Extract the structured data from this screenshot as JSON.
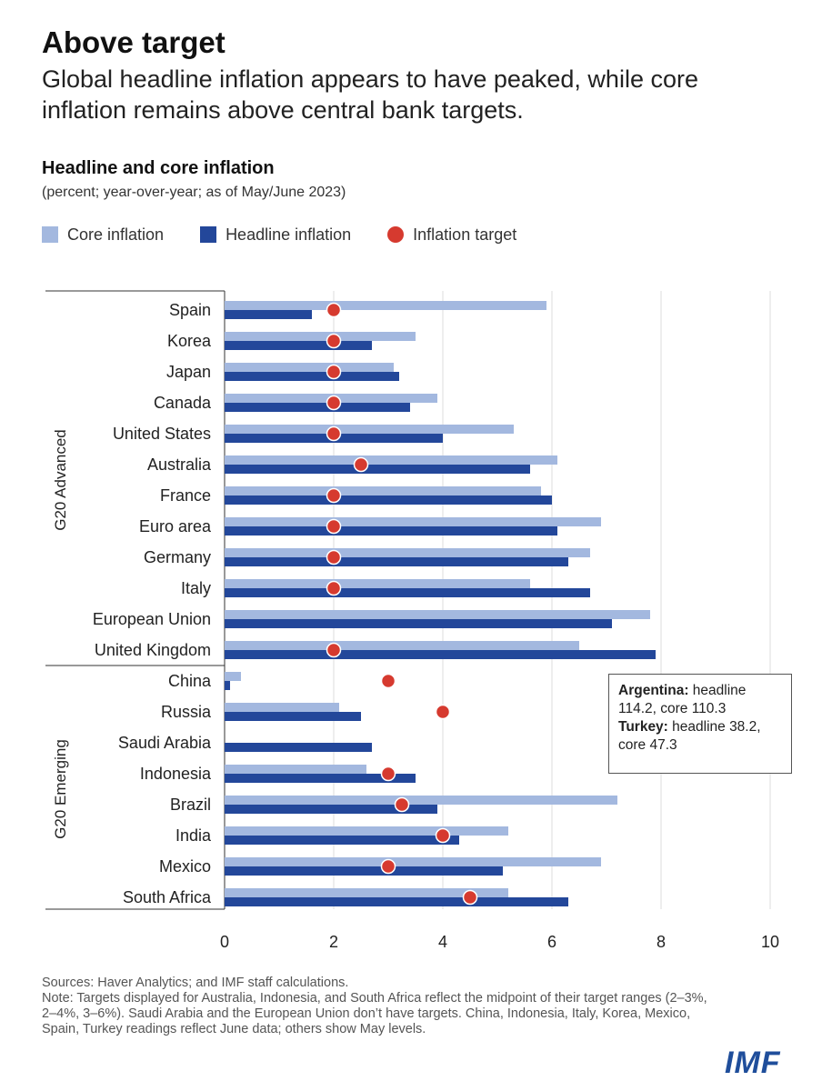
{
  "header": {
    "title": "Above target",
    "subtitle": "Global headline inflation appears to have peaked, while core inflation remains above central bank targets."
  },
  "colors": {
    "core": "#a3b8df",
    "headline": "#23479a",
    "target": "#d63a2f",
    "grid": "#dddddd",
    "axis": "#333333"
  },
  "legend": {
    "core_label": "Core inflation",
    "headline_label": "Headline inflation",
    "target_label": "Inflation target"
  },
  "annotation": {
    "argentina_label": "Argentina:",
    "argentina_text": " headline 114.2, core 110.3",
    "turkey_label": "Turkey:",
    "turkey_text": "  headline 38.2, core 47.3"
  },
  "footer": {
    "sources": "Sources: Haver Analytics; and IMF staff calculations.",
    "note": "Note: Targets displayed for Australia, Indonesia, and South Africa reflect the midpoint of their target ranges (2–3%, 2–4%, 3–6%). Saudi Arabia and the European Union don’t have targets. China, Indonesia, Italy, Korea, Mexico, Spain, Turkey readings reflect June data; others show May levels."
  },
  "logo": "IMF",
  "chart_data": {
    "type": "bar",
    "orientation": "horizontal",
    "title": "Headline and core inflation",
    "subtitle": "(percent; year-over-year; as of May/June 2023)",
    "xlim": [
      0,
      10
    ],
    "xticks": [
      0,
      2,
      4,
      6,
      8,
      10
    ],
    "grid": true,
    "legend_position": "top-left",
    "groups": [
      {
        "name": "G20 Advanced",
        "start": 0,
        "end": 11
      },
      {
        "name": "G20 Emerging",
        "start": 12,
        "end": 19
      }
    ],
    "categories": [
      "Spain",
      "Korea",
      "Japan",
      "Canada",
      "United States",
      "Australia",
      "France",
      "Euro area",
      "Germany",
      "Italy",
      "European Union",
      "United Kingdom",
      "China",
      "Russia",
      "Saudi Arabia",
      "Indonesia",
      "Brazil",
      "India",
      "Mexico",
      "South Africa"
    ],
    "series": [
      {
        "name": "Core inflation",
        "values": [
          5.9,
          3.5,
          3.1,
          3.9,
          5.3,
          6.1,
          5.8,
          6.9,
          6.7,
          5.6,
          7.8,
          6.5,
          0.3,
          2.1,
          null,
          2.6,
          7.2,
          5.2,
          6.9,
          5.2
        ]
      },
      {
        "name": "Headline inflation",
        "values": [
          1.6,
          2.7,
          3.2,
          3.4,
          4.0,
          5.6,
          6.0,
          6.1,
          6.3,
          6.7,
          7.1,
          7.9,
          0.1,
          2.5,
          2.7,
          3.5,
          3.9,
          4.3,
          5.1,
          6.3
        ]
      },
      {
        "name": "Inflation target",
        "values": [
          2,
          2,
          2,
          2,
          2,
          2.5,
          2,
          2,
          2,
          2,
          null,
          2,
          3,
          4,
          null,
          3,
          3.25,
          4,
          3,
          4.5
        ]
      }
    ]
  }
}
